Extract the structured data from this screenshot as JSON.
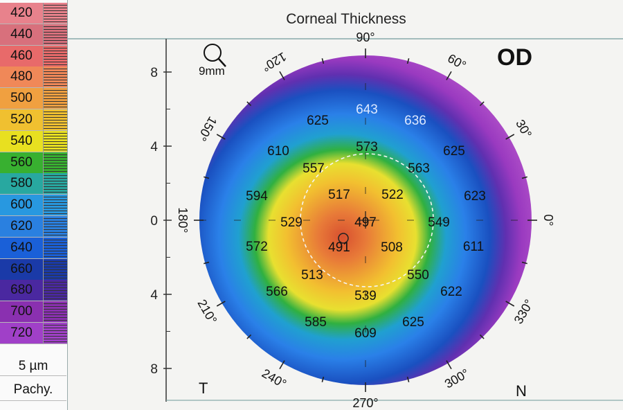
{
  "title": "Corneal Thickness",
  "eye": "OD",
  "magnifier_label": "9mm",
  "corner_left": "T",
  "corner_right": "N",
  "scale": {
    "labels": [
      "420",
      "440",
      "460",
      "480",
      "500",
      "520",
      "540",
      "560",
      "580",
      "600",
      "620",
      "640",
      "660",
      "680",
      "700",
      "720"
    ],
    "colors": [
      "#e8828c",
      "#d8707c",
      "#e86a6a",
      "#f08858",
      "#f0a040",
      "#f0c030",
      "#e8e020",
      "#38b030",
      "#28a8a0",
      "#2898e0",
      "#2a80e0",
      "#1a60d8",
      "#1a3aa8",
      "#4a28a0",
      "#8a30b0",
      "#a040c8"
    ],
    "step_label": "5 µm",
    "mode_label": "Pachy."
  },
  "axis": {
    "y_ticks": [
      "8",
      "4",
      "0",
      "4",
      "8"
    ]
  },
  "angles": [
    "90°",
    "60°",
    "30°",
    "0°",
    "330°",
    "300°",
    "270°",
    "240°",
    "210°",
    "180°",
    "150°",
    "120°"
  ],
  "thickness": [
    {
      "v": "643",
      "light": true
    },
    {
      "v": "636",
      "light": true
    },
    {
      "v": "625"
    },
    {
      "v": "610"
    },
    {
      "v": "573"
    },
    {
      "v": "625"
    },
    {
      "v": "557"
    },
    {
      "v": "563"
    },
    {
      "v": "594"
    },
    {
      "v": "517"
    },
    {
      "v": "522"
    },
    {
      "v": "623"
    },
    {
      "v": "529"
    },
    {
      "v": "497"
    },
    {
      "v": "549"
    },
    {
      "v": "572"
    },
    {
      "v": "491"
    },
    {
      "v": "508"
    },
    {
      "v": "611"
    },
    {
      "v": "513"
    },
    {
      "v": "550"
    },
    {
      "v": "566"
    },
    {
      "v": "539"
    },
    {
      "v": "622"
    },
    {
      "v": "585"
    },
    {
      "v": "625"
    },
    {
      "v": "609"
    }
  ]
}
